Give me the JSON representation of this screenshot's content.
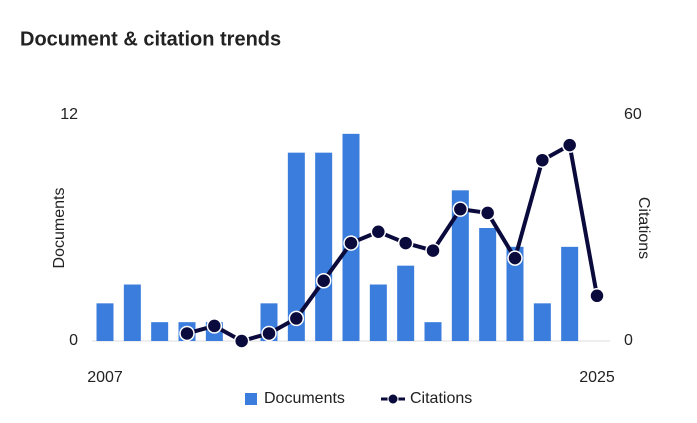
{
  "chart_data": {
    "type": "bar_line",
    "title": "Document & citation trends",
    "categories": [
      "2007",
      null,
      null,
      null,
      null,
      null,
      null,
      null,
      null,
      null,
      null,
      null,
      null,
      null,
      null,
      null,
      null,
      null,
      "2025"
    ],
    "series": [
      {
        "name": "Documents",
        "color": "#3b7ddd",
        "type": "bar",
        "values": [
          2,
          3,
          1,
          1,
          1,
          0,
          2,
          10,
          10,
          11,
          3,
          4,
          1,
          8,
          6,
          5,
          2,
          5,
          0
        ]
      },
      {
        "name": "Citations",
        "color": "#0a0a3c",
        "type": "line",
        "axis": "y2",
        "values": [
          null,
          null,
          null,
          2,
          4,
          0,
          2,
          6,
          16,
          26,
          29,
          26,
          24,
          35,
          34,
          22,
          48,
          52,
          12
        ]
      }
    ],
    "ylabel": "Documents",
    "y2label": "Citations",
    "ylim": [
      0,
      12
    ],
    "yticks": [
      0,
      12
    ],
    "y2lim": [
      0,
      60
    ],
    "y2ticks": [
      0,
      60
    ],
    "legend": "bottom"
  }
}
